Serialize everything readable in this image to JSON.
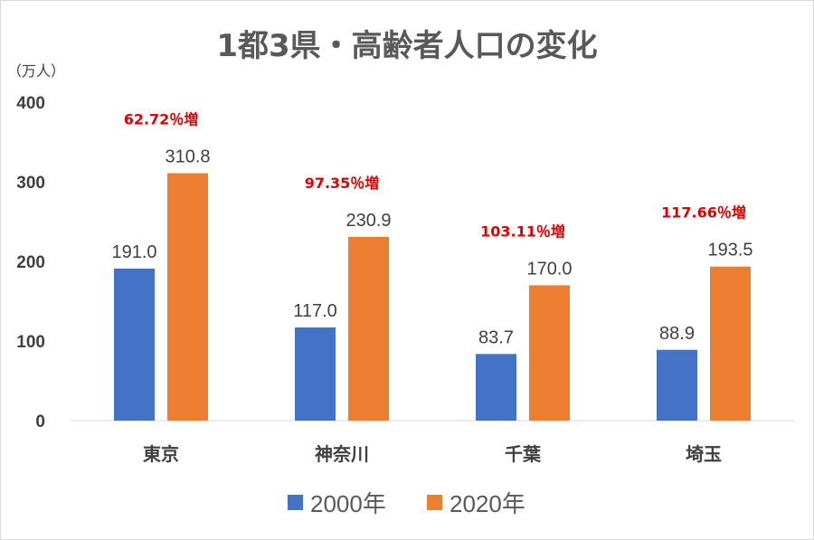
{
  "chart_data": {
    "type": "bar",
    "title": "1都3県・高齢者人口の変化",
    "ylabel": "（万人）",
    "xlabel": "",
    "ylim": [
      0,
      400
    ],
    "yticks": [
      "0",
      "100",
      "200",
      "300",
      "400"
    ],
    "categories": [
      "東京",
      "神奈川",
      "千葉",
      "埼玉"
    ],
    "series": [
      {
        "name": "2000年",
        "color": "#4472c4",
        "values": [
          191.0,
          117.0,
          83.7,
          88.9
        ],
        "labels": [
          "191.0",
          "117.0",
          "83.7",
          "88.9"
        ]
      },
      {
        "name": "2020年",
        "color": "#ed7d31",
        "values": [
          310.8,
          230.9,
          170.0,
          193.5
        ],
        "labels": [
          "310.8",
          "230.9",
          "170.0",
          "193.5"
        ]
      }
    ],
    "annotations": [
      "62.72％増",
      "97.35％増",
      "103.11％増",
      "117.66％増"
    ],
    "annotation_color": "#e00000",
    "grid": false,
    "legend": "bottom-center"
  }
}
